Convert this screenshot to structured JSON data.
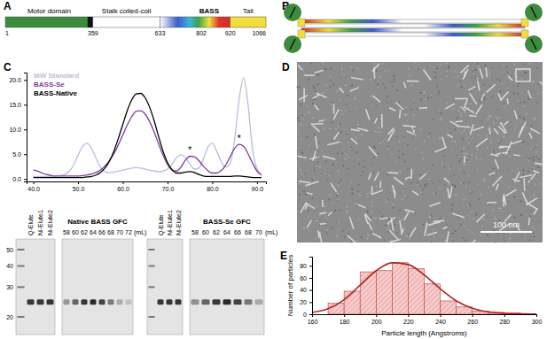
{
  "panel_labels": [
    "A",
    "B",
    "C",
    "D",
    "E"
  ],
  "domain_map": {
    "regions": [
      {
        "name": "Motor domain",
        "start": 1,
        "end": 359
      },
      {
        "name": "Stalk coiled-coil",
        "start": 359,
        "end": 633
      },
      {
        "name": "BASS",
        "start": 633,
        "end": 920
      },
      {
        "name": "Tail",
        "start": 920,
        "end": 1066
      }
    ],
    "boundaries": [
      1,
      359,
      633,
      802,
      920,
      1066
    ]
  },
  "chart_data": [
    {
      "type": "line",
      "x": [
        40,
        41,
        42,
        43,
        44,
        45,
        46,
        47,
        48,
        49,
        50,
        51,
        52,
        53,
        54,
        55,
        56,
        57,
        58,
        59,
        60,
        61,
        62,
        63,
        64,
        65,
        66,
        67,
        68,
        69,
        70,
        71,
        72,
        73,
        74,
        75,
        76,
        77,
        78,
        79,
        80,
        81,
        82,
        83,
        84,
        85,
        86,
        87,
        88,
        89,
        90,
        91
      ],
      "series": [
        {
          "name": "MW Standard",
          "color": "#b9bddf",
          "values": [
            0.5,
            0.5,
            0.5,
            0.5,
            0.5,
            0.6,
            0.7,
            0.9,
            1.5,
            2.8,
            4.8,
            6.6,
            7.2,
            6.2,
            4.2,
            2.4,
            1.5,
            1.3,
            1.4,
            1.6,
            1.8,
            2.0,
            2.2,
            2.3,
            2.2,
            2.0,
            1.8,
            1.6,
            1.5,
            1.6,
            2.0,
            3.0,
            4.3,
            4.9,
            4.3,
            3.0,
            2.0,
            2.2,
            4.0,
            6.4,
            7.2,
            5.6,
            3.5,
            2.4,
            3.2,
            8.0,
            16.0,
            20.5,
            15.0,
            6.0,
            2.0,
            0.8
          ]
        },
        {
          "name": "BASS-Se",
          "color": "#7d3c98",
          "values": [
            1.8,
            1.6,
            1.2,
            0.9,
            0.7,
            0.6,
            0.6,
            0.6,
            0.6,
            0.6,
            0.6,
            0.7,
            0.8,
            1.0,
            1.3,
            1.8,
            2.6,
            3.7,
            5.1,
            6.9,
            8.9,
            10.9,
            12.6,
            13.7,
            13.8,
            13.1,
            11.6,
            9.5,
            7.1,
            4.8,
            2.9,
            1.8,
            1.6,
            2.4,
            3.8,
            4.6,
            4.5,
            3.7,
            2.6,
            1.7,
            1.2,
            1.2,
            1.7,
            2.8,
            4.5,
            6.2,
            7.0,
            6.6,
            5.1,
            3.2,
            1.6,
            0.8
          ]
        },
        {
          "name": "BASS-Native",
          "color": "#000000",
          "values": [
            0.3,
            0.3,
            0.3,
            0.3,
            0.3,
            0.3,
            0.3,
            0.3,
            0.3,
            0.3,
            0.3,
            0.3,
            0.4,
            0.5,
            0.8,
            1.3,
            2.2,
            3.6,
            5.6,
            8.2,
            11.0,
            13.8,
            16.0,
            17.2,
            17.3,
            16.4,
            14.5,
            11.8,
            8.6,
            5.6,
            3.3,
            1.9,
            1.2,
            1.2,
            1.4,
            1.5,
            1.3,
            0.9,
            0.6,
            0.5,
            0.5,
            0.5,
            0.5,
            0.5,
            0.5,
            0.6,
            0.6,
            0.5,
            0.4,
            0.3,
            0.3,
            0.3
          ]
        }
      ],
      "xlim": [
        38.5,
        92
      ],
      "ylim": [
        -0.5,
        21.5
      ],
      "xticks": [
        {
          "value": 40,
          "label": "40.0"
        },
        {
          "value": 50,
          "label": "50.0"
        },
        {
          "value": 60,
          "label": "60.0"
        },
        {
          "value": 70,
          "label": "70.0"
        },
        {
          "value": 80,
          "label": "80.0"
        },
        {
          "value": 90,
          "label": "90.0"
        }
      ],
      "yticks": [
        {
          "value": 0,
          "label": "0.0"
        },
        {
          "value": 5,
          "label": "5.0"
        },
        {
          "value": 10,
          "label": "10.0"
        },
        {
          "value": 15,
          "label": "15.0"
        },
        {
          "value": 20,
          "label": "20.0"
        }
      ],
      "legend": "top-left",
      "annotations": [
        {
          "text": "*",
          "x": 75,
          "y": 5.2
        },
        {
          "text": "*",
          "x": 86,
          "y": 7.6
        }
      ]
    },
    {
      "type": "histogram",
      "bins": [
        170,
        180,
        190,
        200,
        210,
        220,
        230,
        240,
        250,
        260,
        270,
        280,
        290,
        300
      ],
      "values": [
        18,
        38,
        70,
        72,
        85,
        75,
        50,
        22,
        12,
        5,
        3,
        2,
        1
      ],
      "color": "#f6cccc",
      "xlim": [
        160,
        300
      ],
      "ylim": [
        0,
        95
      ],
      "xticks": [
        160,
        180,
        200,
        220,
        240,
        260,
        280,
        300
      ],
      "yticks": [
        0,
        20,
        40,
        60,
        80
      ],
      "x_label": "Particle length (Angstroms)",
      "y_label": "Number of particles",
      "fit": {
        "x": [
          160,
          170,
          180,
          190,
          200,
          210,
          220,
          230,
          240,
          250,
          260,
          270,
          280,
          290,
          300
        ],
        "values": [
          3,
          9,
          24,
          48,
          72,
          85,
          82,
          65,
          42,
          22,
          10,
          4,
          1.5,
          0.5,
          0.2
        ],
        "color": "#b22222"
      }
    }
  ],
  "gels": {
    "mw_markers": [
      50,
      40,
      30,
      20
    ],
    "panels": [
      {
        "lanes": [
          "Q-Elute",
          "Ni-Elute1",
          "Ni-Elute2"
        ]
      },
      {
        "title": "Native BASS GFC",
        "fractions": [
          58,
          60,
          62,
          64,
          66,
          68,
          70,
          72
        ],
        "unit": "(mL)"
      },
      {
        "lanes": [
          "Q-Elute",
          "Ni-Elute1",
          "Ni-Elute2"
        ]
      },
      {
        "title": "BASS-Se GFC",
        "fractions": [
          58,
          60,
          62,
          64,
          66,
          68,
          70
        ],
        "unit": "(mL)"
      }
    ]
  },
  "micrograph": {
    "scale_bar": "100 nm"
  }
}
